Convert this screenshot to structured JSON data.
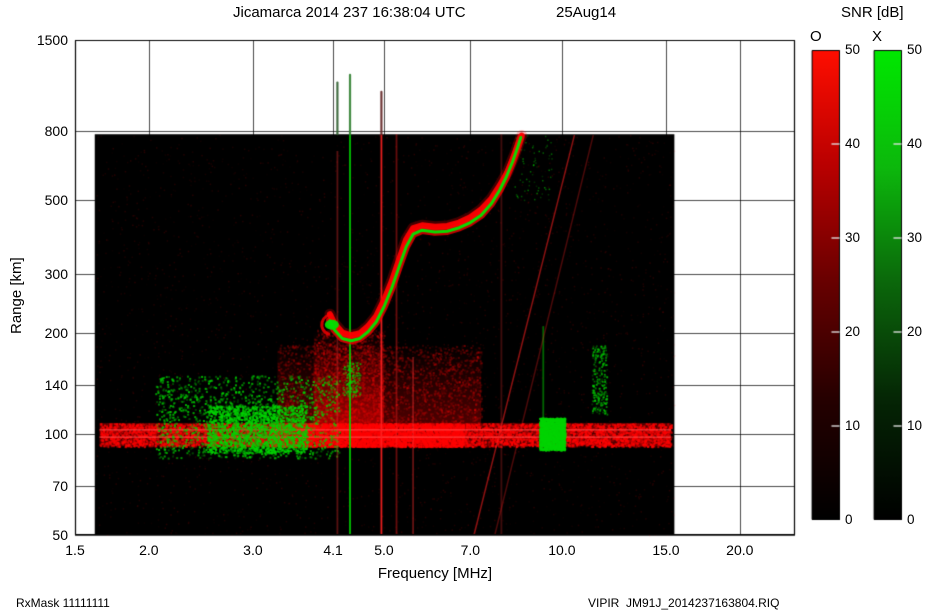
{
  "header": {
    "title": "Jicamarca 2014 237 16:38:04 UTC",
    "date": "25Aug14"
  },
  "footer": {
    "left": "RxMask 11111111",
    "right": "VIPIR  JM91J_2014237163804.RIQ"
  },
  "chart_data": {
    "type": "heatmap",
    "description": "Ionogram: O-mode (red) and X-mode (green) echo SNR versus sounding frequency and virtual range",
    "title": "Jicamarca 2014 237 16:38:04 UTC",
    "date": "25Aug14",
    "xlabel": "Frequency [MHz]",
    "ylabel": "Range [km]",
    "xscale": "log",
    "yscale": "log",
    "xlim": [
      1.5,
      24.8
    ],
    "ylim": [
      50,
      1500
    ],
    "grid": true,
    "x_ticks": [
      {
        "v": 1.5,
        "label": "1.5"
      },
      {
        "v": 2.0,
        "label": "2.0"
      },
      {
        "v": 3.0,
        "label": "3.0"
      },
      {
        "v": 4.1,
        "label": "4.1"
      },
      {
        "v": 5.0,
        "label": "5.0"
      },
      {
        "v": 7.0,
        "label": "7.0"
      },
      {
        "v": 10.0,
        "label": "10.0"
      },
      {
        "v": 15.0,
        "label": "15.0"
      },
      {
        "v": 20.0,
        "label": "20.0"
      }
    ],
    "y_ticks": [
      {
        "v": 50,
        "label": "50"
      },
      {
        "v": 70,
        "label": "70"
      },
      {
        "v": 100,
        "label": "100"
      },
      {
        "v": 140,
        "label": "140"
      },
      {
        "v": 200,
        "label": "200"
      },
      {
        "v": 300,
        "label": "300"
      },
      {
        "v": 500,
        "label": "500"
      },
      {
        "v": 800,
        "label": "800"
      },
      {
        "v": 1500,
        "label": "1500"
      }
    ],
    "data_extent": {
      "f": [
        1.62,
        15.5
      ],
      "km": [
        50,
        785
      ],
      "background": "#000000"
    },
    "colorbar_title": "SNR [dB]",
    "colorbars": [
      {
        "name": "O",
        "color": "#ff0000",
        "range": [
          0,
          50
        ],
        "gradient": [
          "#000000",
          "#240000",
          "#660000",
          "#b80000",
          "#ff0e00"
        ],
        "ticks": [
          {
            "v": 0,
            "label": "0"
          },
          {
            "v": 10,
            "label": "10"
          },
          {
            "v": 20,
            "label": "20"
          },
          {
            "v": 30,
            "label": "30"
          },
          {
            "v": 40,
            "label": "40"
          },
          {
            "v": 50,
            "label": "50"
          }
        ]
      },
      {
        "name": "X",
        "color": "#00e400",
        "range": [
          0,
          50
        ],
        "gradient": [
          "#000000",
          "#052405",
          "#0b660b",
          "#0cb80c",
          "#00e800"
        ],
        "ticks": [
          {
            "v": 0,
            "label": "0"
          },
          {
            "v": 10,
            "label": "10"
          },
          {
            "v": 20,
            "label": "20"
          },
          {
            "v": 30,
            "label": "30"
          },
          {
            "v": 40,
            "label": "40"
          },
          {
            "v": 50,
            "label": "50"
          }
        ]
      }
    ],
    "series": [
      {
        "name": "O-mode trace",
        "color": "#ff0000",
        "points_f_km": [
          [
            4.05,
            228
          ],
          [
            4.12,
            214
          ],
          [
            4.25,
            201
          ],
          [
            4.4,
            197
          ],
          [
            4.55,
            200
          ],
          [
            4.7,
            210
          ],
          [
            4.85,
            225
          ],
          [
            5.0,
            251
          ],
          [
            5.15,
            285
          ],
          [
            5.3,
            331
          ],
          [
            5.45,
            381
          ],
          [
            5.6,
            412
          ],
          [
            5.8,
            420
          ],
          [
            6.1,
            416
          ],
          [
            6.4,
            418
          ],
          [
            6.7,
            428
          ],
          [
            7.0,
            444
          ],
          [
            7.3,
            468
          ],
          [
            7.6,
            505
          ],
          [
            7.85,
            552
          ],
          [
            8.1,
            608
          ],
          [
            8.3,
            675
          ],
          [
            8.45,
            738
          ],
          [
            8.55,
            778
          ]
        ]
      },
      {
        "name": "X-mode trace",
        "color": "#00dd00",
        "points_f_km": [
          [
            4.05,
            218
          ],
          [
            4.12,
            205
          ],
          [
            4.25,
            193
          ],
          [
            4.4,
            190
          ],
          [
            4.55,
            193
          ],
          [
            4.7,
            202
          ],
          [
            4.85,
            216
          ],
          [
            5.0,
            240
          ],
          [
            5.15,
            272
          ],
          [
            5.3,
            315
          ],
          [
            5.45,
            362
          ],
          [
            5.6,
            395
          ],
          [
            5.8,
            406
          ],
          [
            6.1,
            401
          ],
          [
            6.4,
            403
          ],
          [
            6.7,
            413
          ],
          [
            7.0,
            428
          ],
          [
            7.3,
            450
          ],
          [
            7.6,
            488
          ],
          [
            7.85,
            535
          ],
          [
            8.05,
            585
          ],
          [
            8.25,
            650
          ],
          [
            8.4,
            710
          ],
          [
            8.52,
            768
          ]
        ]
      }
    ],
    "cusp": {
      "f": 4.08,
      "km": 212,
      "color": "#00e000"
    },
    "noise": {
      "band": {
        "f_range": [
          1.65,
          15.3
        ],
        "km_range": [
          92,
          108
        ],
        "color": "#ff0000",
        "bright_lines_km": [
          98,
          103
        ]
      },
      "diffuse_red": [
        {
          "f_range": [
            3.3,
            7.3
          ],
          "km_range": [
            105,
            185
          ]
        },
        {
          "f_range": [
            3.8,
            5.0
          ],
          "km_range": [
            108,
            205
          ]
        }
      ],
      "green_patches": [
        {
          "f_range": [
            2.05,
            4.2
          ],
          "km_range": [
            85,
            150
          ],
          "density": "sparse"
        },
        {
          "f_range": [
            2.5,
            3.7
          ],
          "km_range": [
            88,
            122
          ],
          "density": "dense"
        },
        {
          "f_range": [
            9.15,
            10.1
          ],
          "km_range": [
            90,
            112
          ],
          "density": "dense"
        },
        {
          "f_range": [
            11.2,
            11.9
          ],
          "km_range": [
            115,
            185
          ],
          "density": "sparse"
        },
        {
          "f_range": [
            4.25,
            4.55
          ],
          "km_range": [
            130,
            165
          ],
          "density": "sparse"
        },
        {
          "f_range": [
            8.3,
            9.6
          ],
          "km_range": [
            500,
            780
          ],
          "density": "very-sparse"
        }
      ]
    },
    "interference": {
      "verticals": [
        {
          "f": 4.17,
          "km_range": [
            50,
            700
          ],
          "color": "#ff3030",
          "alpha": 0.35
        },
        {
          "f": 4.38,
          "km_range": [
            50,
            785
          ],
          "color": "#00e400",
          "alpha": 0.85
        },
        {
          "f": 4.95,
          "km_range": [
            50,
            785
          ],
          "color": "#ff2020",
          "alpha": 0.9
        },
        {
          "f": 5.25,
          "km_range": [
            50,
            785
          ],
          "color": "#ff2020",
          "alpha": 0.4
        },
        {
          "f": 5.6,
          "km_range": [
            50,
            170
          ],
          "color": "#ff3030",
          "alpha": 0.4
        },
        {
          "f": 7.9,
          "km_range": [
            50,
            785
          ],
          "color": "#ff3030",
          "alpha": 0.25
        },
        {
          "f": 9.3,
          "km_range": [
            110,
            210
          ],
          "color": "#00cc00",
          "alpha": 0.5
        }
      ],
      "diagonals": [
        {
          "from_f_km": [
            7.1,
            50
          ],
          "to_f_km": [
            10.5,
            780
          ],
          "color": "#ff2020",
          "alpha": 0.55
        },
        {
          "from_f_km": [
            7.7,
            50
          ],
          "to_f_km": [
            11.3,
            780
          ],
          "color": "#ff2020",
          "alpha": 0.3
        }
      ],
      "top_streaks": [
        {
          "f": 4.17,
          "km_range": [
            785,
            1120
          ],
          "color": "#2e5d2e"
        },
        {
          "f": 4.38,
          "km_range": [
            785,
            1180
          ],
          "color": "#2e7d2e"
        },
        {
          "f": 4.95,
          "km_range": [
            785,
            1050
          ],
          "color": "#5d1f1f"
        }
      ]
    }
  }
}
